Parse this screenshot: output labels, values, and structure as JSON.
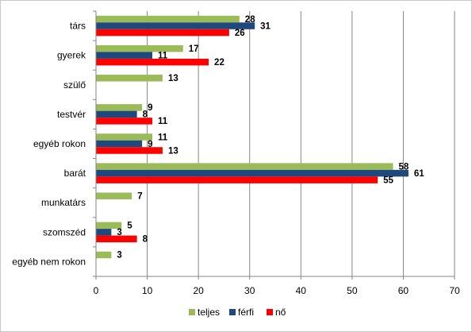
{
  "chart_data": {
    "type": "bar",
    "orientation": "horizontal",
    "categories": [
      "társ",
      "gyerek",
      "szülő",
      "testvér",
      "egyéb rokon",
      "barát",
      "munkatárs",
      "szomszéd",
      "egyéb nem rokon"
    ],
    "series": [
      {
        "name": "teljes",
        "color": "#9bbb59",
        "values": [
          28,
          17,
          13,
          9,
          11,
          58,
          7,
          5,
          3
        ]
      },
      {
        "name": "férfi",
        "color": "#1f497d",
        "values": [
          31,
          11,
          null,
          8,
          9,
          61,
          null,
          3,
          null
        ]
      },
      {
        "name": "nő",
        "color": "#ff0000",
        "values": [
          26,
          22,
          null,
          11,
          13,
          55,
          null,
          8,
          null
        ]
      }
    ],
    "xlim": [
      0,
      70
    ],
    "xticks": [
      0,
      10,
      20,
      30,
      40,
      50,
      60,
      70
    ],
    "grid": true,
    "legend_position": "bottom",
    "title": "",
    "xlabel": "",
    "ylabel": ""
  }
}
